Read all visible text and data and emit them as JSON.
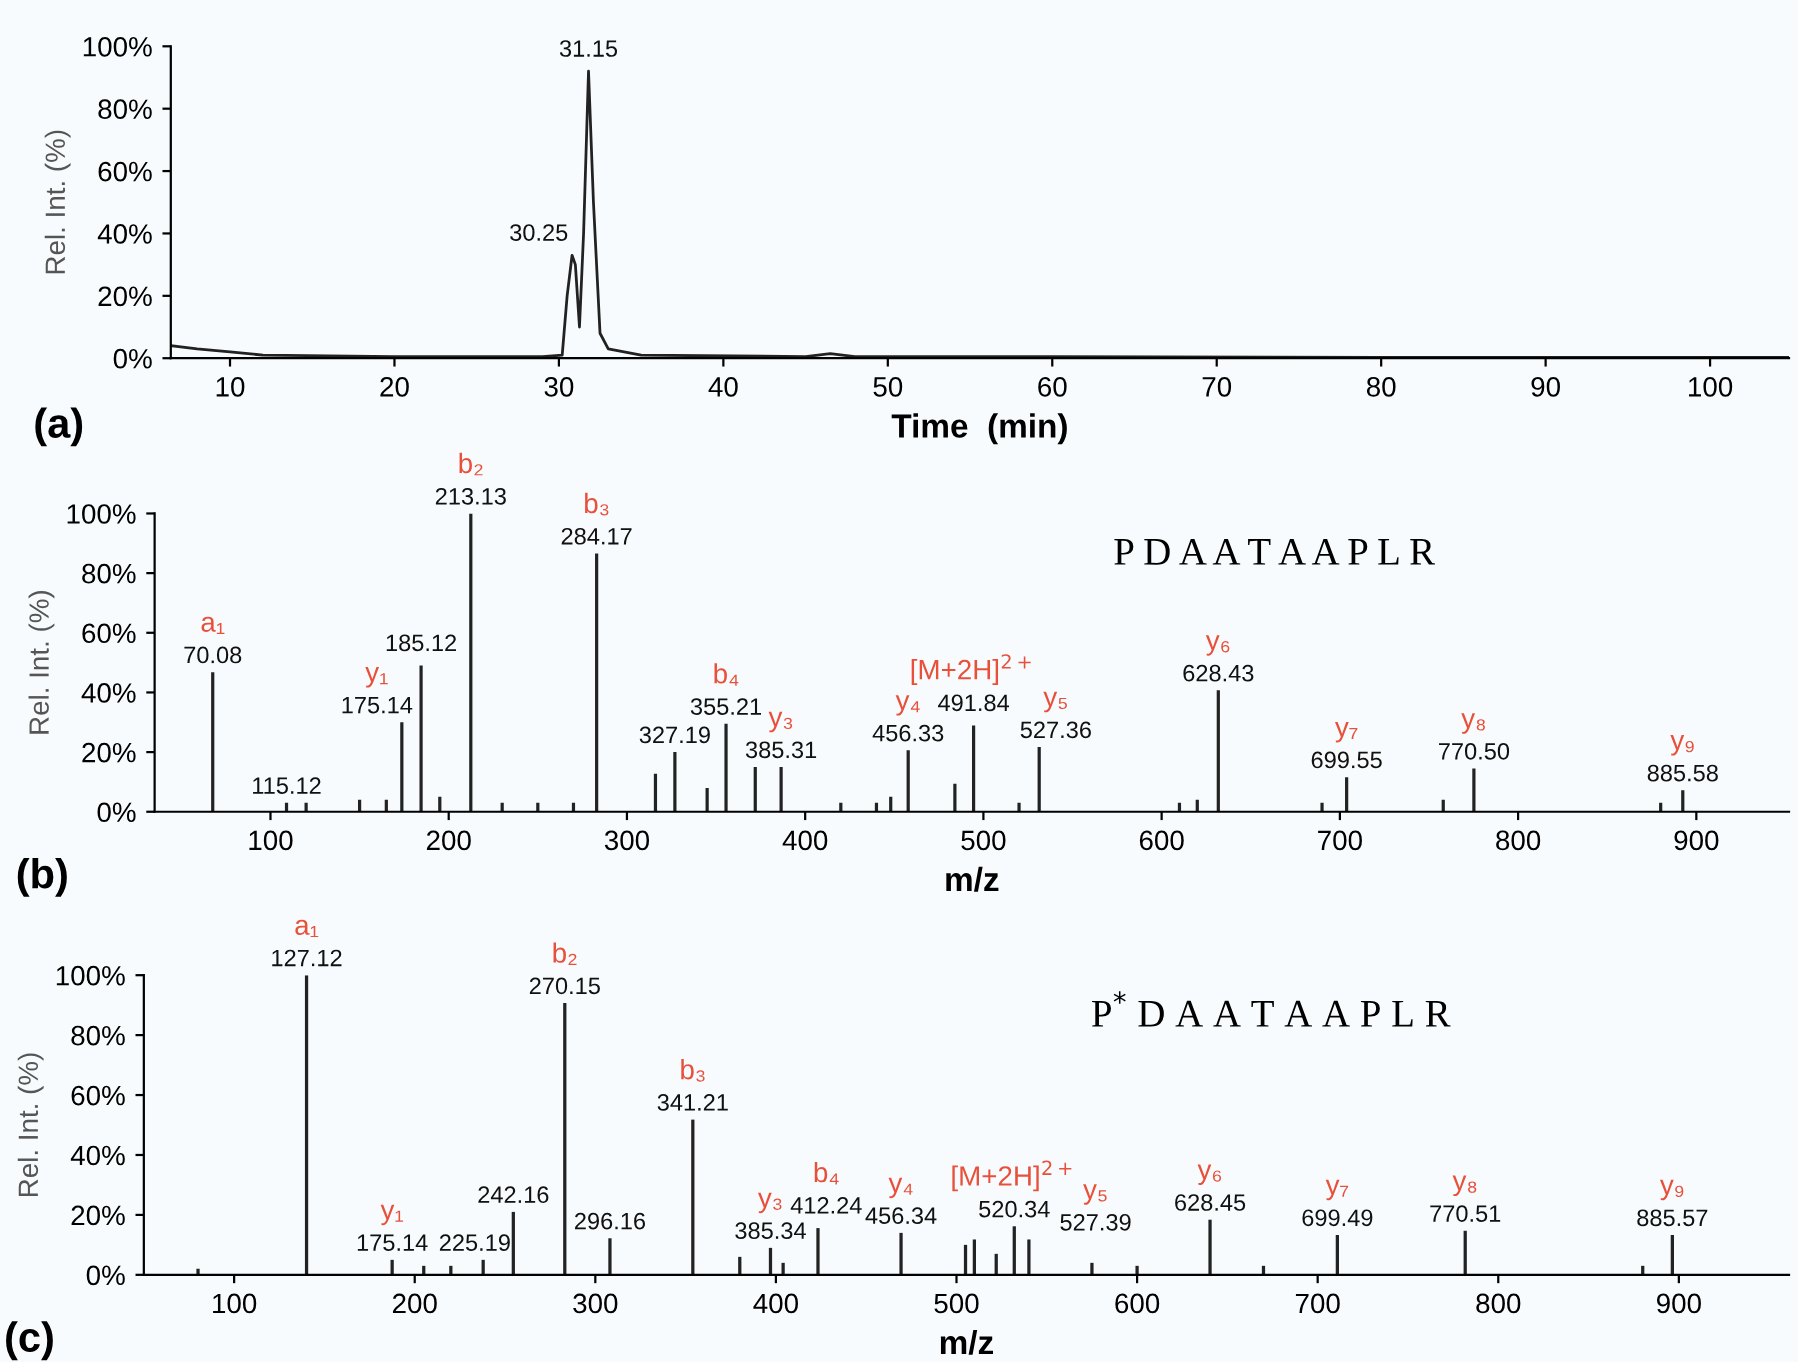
{
  "chart_data": [
    {
      "type": "line",
      "xlabel": "Time  (min)",
      "ylabel": "Rel. Int. (%)",
      "color": "#222222",
      "x": [
        6.4,
        8,
        10,
        12,
        20,
        29,
        30.2,
        30.5,
        30.8,
        31.0,
        31.25,
        31.5,
        31.8,
        32.1,
        32.5,
        33,
        35,
        45,
        46.5,
        48,
        60,
        80,
        104.8
      ],
      "values": [
        4,
        3,
        2,
        1,
        0.5,
        0.5,
        1,
        20,
        33,
        30,
        10,
        40,
        92,
        50,
        8,
        3,
        1,
        0.5,
        1.5,
        0.5,
        0.5,
        0.3,
        0.3
      ],
      "xlim": [
        6.4,
        104.8
      ],
      "xticks": [
        10,
        20,
        30,
        40,
        50,
        60,
        70,
        80,
        90,
        100
      ],
      "ylim": [
        0,
        100
      ],
      "yticks": [
        {
          "value": 0,
          "label": "0%"
        },
        {
          "value": 20,
          "label": "20%"
        },
        {
          "value": 40,
          "label": "40%"
        },
        {
          "value": 60,
          "label": "60%"
        },
        {
          "value": 80,
          "label": "80%"
        },
        {
          "value": 100,
          "label": "100%"
        }
      ],
      "annotations": [
        "(a)",
        {
          "text": "30.25",
          "x": 30.8,
          "y": 33
        },
        {
          "text": "31.15",
          "x": 31.8,
          "y": 92
        }
      ]
    },
    {
      "type": "bar",
      "xlabel": "m/z",
      "ylabel": "Rel. Int. (%)",
      "color": "#222222",
      "x": [
        67.6,
        109,
        120,
        150,
        165,
        173.7,
        184.5,
        195,
        212.4,
        230,
        250,
        270,
        283,
        316,
        326.9,
        345,
        355.6,
        372,
        386.5,
        420,
        440,
        448,
        457.8,
        484,
        494.5,
        520,
        531.3,
        610,
        620,
        631.8,
        690,
        703.8,
        758,
        775.2,
        880,
        892.4
      ],
      "values": [
        46.8,
        3,
        3,
        4,
        4,
        30,
        49,
        5,
        100,
        3,
        3,
        3,
        86.6,
        12.7,
        20,
        8,
        29.5,
        15,
        15,
        3,
        3,
        5,
        20.6,
        9.4,
        28.9,
        3,
        21.7,
        3,
        4,
        40.7,
        3,
        11.6,
        4,
        14.5,
        3,
        7.2
      ],
      "xlim": [
        35,
        952
      ],
      "xticks": [
        100,
        200,
        300,
        400,
        500,
        600,
        700,
        800,
        900
      ],
      "ylim": [
        0,
        100
      ],
      "yticks": [
        {
          "value": 0,
          "label": "0%"
        },
        {
          "value": 20,
          "label": "20%"
        },
        {
          "value": 40,
          "label": "40%"
        },
        {
          "value": 60,
          "label": "60%"
        },
        {
          "value": 80,
          "label": "80%"
        },
        {
          "value": 100,
          "label": "100%"
        }
      ],
      "annotations": [
        "(b)",
        "P D A A T A A P L R",
        {
          "text": "70.08",
          "x": 67.6,
          "y": 46.8
        },
        {
          "text": "a₁",
          "x": 67.6,
          "y": 46.8
        },
        {
          "text": "115.12",
          "x": 109,
          "y": 3
        },
        {
          "text": "175.14",
          "x": 173.7,
          "y": 30
        },
        {
          "text": "y₁",
          "x": 173.7,
          "y": 30
        },
        {
          "text": "185.12",
          "x": 184.5,
          "y": 49
        },
        {
          "text": "213.13",
          "x": 212.4,
          "y": 100
        },
        {
          "text": "b₂",
          "x": 212.4,
          "y": 100
        },
        {
          "text": "284.17",
          "x": 283,
          "y": 86.6
        },
        {
          "text": "b₃",
          "x": 283,
          "y": 86.6
        },
        {
          "text": "327.19",
          "x": 326.9,
          "y": 20
        },
        {
          "text": "355.21",
          "x": 355.6,
          "y": 29.5
        },
        {
          "text": "b₄",
          "x": 355.6,
          "y": 29.5
        },
        {
          "text": "385.31",
          "x": 386.5,
          "y": 15
        },
        {
          "text": "y₃",
          "x": 386.5,
          "y": 15
        },
        {
          "text": "456.33",
          "x": 457.8,
          "y": 20.6
        },
        {
          "text": "y₄",
          "x": 457.8,
          "y": 20.6
        },
        {
          "text": "491.84",
          "x": 494.5,
          "y": 28.9
        },
        {
          "text": "[M+2H]$^{2+}$",
          "x": 494.5,
          "y": 28.9
        },
        {
          "text": "527.36",
          "x": 531.3,
          "y": 21.7
        },
        {
          "text": "y₅",
          "x": 531.3,
          "y": 21.7
        },
        {
          "text": "628.43",
          "x": 631.8,
          "y": 40.7
        },
        {
          "text": "y₆",
          "x": 631.8,
          "y": 40.7
        },
        {
          "text": "699.55",
          "x": 703.8,
          "y": 11.6
        },
        {
          "text": "y₇",
          "x": 703.8,
          "y": 11.6
        },
        {
          "text": "770.50",
          "x": 775.2,
          "y": 14.5
        },
        {
          "text": "y₈",
          "x": 775.2,
          "y": 14.5
        },
        {
          "text": "885.58",
          "x": 892.4,
          "y": 7.2
        },
        {
          "text": "y₉",
          "x": 892.4,
          "y": 7.2
        }
      ]
    },
    {
      "type": "bar",
      "xlabel": "m/z",
      "ylabel": "Rel. Int. (%)",
      "color": "#222222",
      "x": [
        80,
        140.1,
        187.5,
        205,
        220,
        237.9,
        254.6,
        283.1,
        308.1,
        354,
        380,
        397,
        404,
        423.3,
        469.3,
        505,
        509.9,
        522,
        532,
        540.1,
        575,
        600,
        640.4,
        670,
        710.9,
        781.7,
        880,
        896.4
      ],
      "values": [
        2,
        100,
        5,
        3,
        3,
        5,
        21,
        90.7,
        12.2,
        51.8,
        6,
        9,
        4,
        15.6,
        14,
        10,
        11.8,
        7,
        16.2,
        11.8,
        4,
        3,
        18.4,
        3,
        13.3,
        14.7,
        3,
        13.3
      ],
      "xlim": [
        50,
        961
      ],
      "xticks": [
        100,
        200,
        300,
        400,
        500,
        600,
        700,
        800,
        900
      ],
      "ylim": [
        0,
        100
      ],
      "yticks": [
        {
          "value": 0,
          "label": "0%"
        },
        {
          "value": 20,
          "label": "20%"
        },
        {
          "value": 40,
          "label": "40%"
        },
        {
          "value": 60,
          "label": "60%"
        },
        {
          "value": 80,
          "label": "80%"
        },
        {
          "value": 100,
          "label": "100%"
        }
      ],
      "annotations": [
        "(c)",
        "P$^{*}$ D A A T A A P L R",
        {
          "text": "127.12",
          "x": 140.1,
          "y": 100
        },
        {
          "text": "a₁",
          "x": 140.1,
          "y": 100
        },
        {
          "text": "175.14",
          "x": 187.5,
          "y": 5
        },
        {
          "text": "y₁",
          "x": 187.5,
          "y": 5
        },
        {
          "text": "225.19",
          "x": 237.9,
          "y": 5
        },
        {
          "text": "242.16",
          "x": 254.6,
          "y": 21
        },
        {
          "text": "270.15",
          "x": 283.1,
          "y": 90.7
        },
        {
          "text": "b₂",
          "x": 283.1,
          "y": 90.7
        },
        {
          "text": "296.16",
          "x": 308.1,
          "y": 12.2
        },
        {
          "text": "341.21",
          "x": 354,
          "y": 51.8
        },
        {
          "text": "b₃",
          "x": 354,
          "y": 51.8
        },
        {
          "text": "385.34",
          "x": 397,
          "y": 9
        },
        {
          "text": "y₃",
          "x": 397,
          "y": 9
        },
        {
          "text": "412.24",
          "x": 423.3,
          "y": 15.6
        },
        {
          "text": "b₄",
          "x": 423.3,
          "y": 15.6
        },
        {
          "text": "456.34",
          "x": 469.3,
          "y": 14
        },
        {
          "text": "y₄",
          "x": 469.3,
          "y": 14
        },
        {
          "text": "520.34",
          "x": 532,
          "y": 16.2
        },
        {
          "text": "[M+2H]$^{2+}$",
          "x": 532,
          "y": 16.2
        },
        {
          "text": "527.39",
          "x": 540.1,
          "y": 11.8
        },
        {
          "text": "y₅",
          "x": 540.1,
          "y": 11.8
        },
        {
          "text": "628.45",
          "x": 640.4,
          "y": 18.4
        },
        {
          "text": "y₆",
          "x": 640.4,
          "y": 18.4
        },
        {
          "text": "699.49",
          "x": 710.9,
          "y": 13.3
        },
        {
          "text": "y₇",
          "x": 710.9,
          "y": 13.3
        },
        {
          "text": "770.51",
          "x": 781.7,
          "y": 14.7
        },
        {
          "text": "y₈",
          "x": 781.7,
          "y": 14.7
        },
        {
          "text": "885.57",
          "x": 896.4,
          "y": 13.3
        },
        {
          "text": "y₉",
          "x": 896.4,
          "y": 13.3
        }
      ]
    }
  ]
}
